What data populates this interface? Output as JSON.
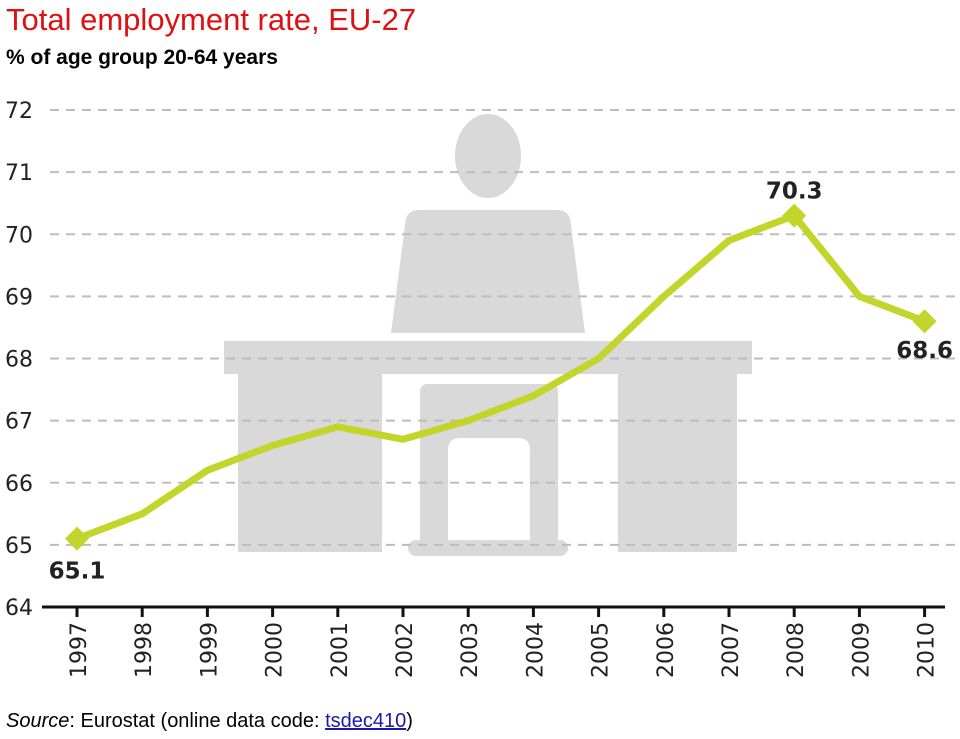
{
  "header": {
    "title": "Total employment rate, EU-27",
    "subtitle": "% of age group 20-64 years"
  },
  "source": {
    "label": "Source",
    "text": ": Eurostat (online data code: ",
    "code": "tsdec410",
    "close": ")"
  },
  "colors": {
    "line": "#c3d52a",
    "grid": "#bdbdbd",
    "illustration": "#d9d9d9",
    "title": "#e01010"
  },
  "chart_data": {
    "type": "line",
    "title": "Total employment rate, EU-27",
    "subtitle": "% of age group 20-64 years",
    "x": [
      "1997",
      "1998",
      "1999",
      "2000",
      "2001",
      "2002",
      "2003",
      "2004",
      "2005",
      "2006",
      "2007",
      "2008",
      "2009",
      "2010"
    ],
    "series": [
      {
        "values": [
          65.1,
          65.5,
          66.2,
          66.6,
          66.9,
          66.7,
          67.0,
          67.4,
          68.0,
          69.0,
          69.9,
          70.3,
          69.0,
          68.6
        ]
      }
    ],
    "ylim": [
      64,
      72
    ],
    "yticks": [
      "64",
      "65",
      "66",
      "67",
      "68",
      "69",
      "70",
      "71",
      "72"
    ],
    "grid": true,
    "gridStyle": "dashed",
    "annotations": [
      {
        "x": "1997",
        "label": "65.1"
      },
      {
        "x": "2008",
        "label": "70.3"
      },
      {
        "x": "2010",
        "label": "68.6"
      }
    ],
    "background_illustration": "person-at-desk-icon"
  }
}
